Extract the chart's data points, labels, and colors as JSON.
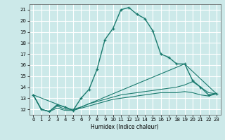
{
  "xlabel": "Humidex (Indice chaleur)",
  "bg_color": "#cce9e9",
  "grid_color": "#ffffff",
  "line_color": "#1a7a6e",
  "xlim": [
    -0.5,
    23.5
  ],
  "ylim": [
    11.5,
    21.5
  ],
  "xticks": [
    0,
    1,
    2,
    3,
    4,
    5,
    6,
    7,
    8,
    9,
    10,
    11,
    12,
    13,
    14,
    15,
    16,
    17,
    18,
    19,
    20,
    21,
    22,
    23
  ],
  "yticks": [
    12,
    13,
    14,
    15,
    16,
    17,
    18,
    19,
    20,
    21
  ],
  "line1_x": [
    0,
    1,
    2,
    3,
    4,
    5,
    6,
    7,
    8,
    9,
    10,
    11,
    12,
    13,
    14,
    15,
    16,
    17,
    18,
    19,
    20,
    21,
    22,
    23
  ],
  "line1_y": [
    13.3,
    12.0,
    11.8,
    12.4,
    12.2,
    11.9,
    13.0,
    13.8,
    15.6,
    18.3,
    19.3,
    21.0,
    21.2,
    20.6,
    20.2,
    19.1,
    17.0,
    16.7,
    16.1,
    16.1,
    14.6,
    14.0,
    13.3,
    13.4
  ],
  "line2_x": [
    0,
    1,
    2,
    3,
    4,
    5,
    6,
    7,
    8,
    9,
    10,
    11,
    12,
    13,
    14,
    15,
    16,
    17,
    18,
    19,
    20,
    21,
    22,
    23
  ],
  "line2_y": [
    13.3,
    12.0,
    11.8,
    12.3,
    12.0,
    12.0,
    12.2,
    12.5,
    12.7,
    12.9,
    13.1,
    13.3,
    13.4,
    13.5,
    13.6,
    13.7,
    13.8,
    13.9,
    14.0,
    14.2,
    14.5,
    14.0,
    13.5,
    13.4
  ],
  "line3_x": [
    0,
    1,
    2,
    3,
    4,
    5,
    6,
    7,
    8,
    9,
    10,
    11,
    12,
    13,
    14,
    15,
    16,
    17,
    18,
    19,
    20,
    21,
    22,
    23
  ],
  "line3_y": [
    13.3,
    12.0,
    11.8,
    12.1,
    11.9,
    11.9,
    12.1,
    12.3,
    12.5,
    12.7,
    12.9,
    13.0,
    13.1,
    13.2,
    13.3,
    13.4,
    13.5,
    13.5,
    13.5,
    13.6,
    13.5,
    13.3,
    13.2,
    13.4
  ],
  "line4_x": [
    0,
    5,
    19,
    23
  ],
  "line4_y": [
    13.3,
    11.9,
    16.1,
    13.4
  ]
}
